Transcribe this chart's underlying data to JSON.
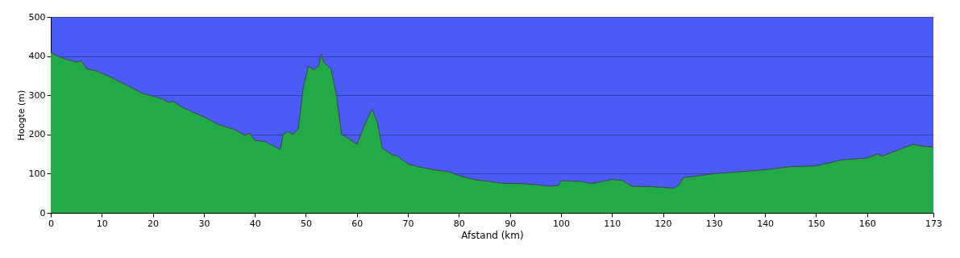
{
  "chart_data": {
    "type": "area",
    "xlabel": "Afstand  (km)",
    "ylabel": "Hoogte (m)",
    "x": [
      0,
      1,
      3,
      5,
      6,
      7,
      9,
      12,
      15,
      18,
      20,
      22,
      23,
      24,
      25,
      27,
      30,
      33,
      36,
      38,
      39,
      40,
      42,
      44,
      45,
      45.5,
      46.5,
      47.5,
      48.5,
      49.5,
      50.5,
      51.5,
      52.5,
      53,
      53.5,
      55,
      56,
      57,
      59,
      60,
      60.5,
      61.5,
      63,
      64,
      65,
      67,
      68,
      70,
      72,
      75,
      78,
      80,
      83,
      86,
      89,
      92,
      95,
      98,
      99.5,
      100,
      104,
      106,
      108,
      110,
      112,
      113,
      114,
      117,
      120,
      122,
      123,
      124,
      126,
      130,
      135,
      140,
      145,
      150,
      155,
      160,
      162,
      163,
      165,
      168,
      169,
      171,
      173
    ],
    "series": [
      {
        "color": "#22aa48",
        "values": [
          410,
          402,
          392,
          385,
          388,
          368,
          362,
          345,
          325,
          305,
          298,
          290,
          282,
          285,
          275,
          262,
          245,
          225,
          213,
          198,
          203,
          185,
          182,
          168,
          162,
          200,
          208,
          200,
          215,
          320,
          375,
          365,
          375,
          405,
          385,
          365,
          300,
          200,
          185,
          175,
          190,
          225,
          265,
          230,
          165,
          148,
          145,
          125,
          118,
          110,
          105,
          95,
          85,
          80,
          75,
          75,
          72,
          68,
          70,
          82,
          80,
          75,
          80,
          85,
          83,
          75,
          68,
          67,
          65,
          63,
          70,
          90,
          93,
          100,
          105,
          110,
          118,
          120,
          135,
          140,
          150,
          145,
          155,
          170,
          175,
          170,
          168
        ]
      }
    ],
    "xlim": [
      0,
      173
    ],
    "xticks": [
      0,
      10,
      20,
      30,
      40,
      50,
      60,
      70,
      80,
      90,
      100,
      110,
      120,
      130,
      140,
      150,
      160,
      173
    ],
    "ylim": [
      0,
      500
    ],
    "yticks": [
      0,
      100,
      200,
      300,
      400,
      500
    ],
    "grid": "y"
  }
}
